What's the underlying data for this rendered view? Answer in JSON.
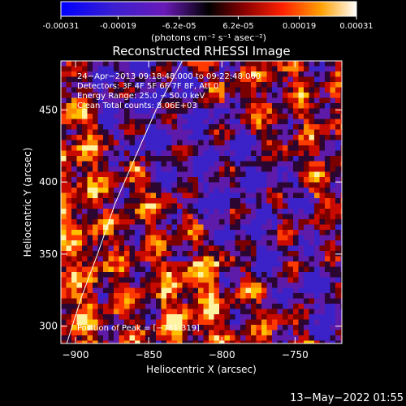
{
  "chart_data": {
    "type": "heatmap",
    "title": "Reconstructed RHESSI Image",
    "colorbar": {
      "ticks": [
        "-0.00031",
        "-0.00019",
        "-6.2e-05",
        "6.2e-05",
        "0.00019",
        "0.00031"
      ],
      "tick_values": [
        -0.00031,
        -0.00019,
        -6.2e-05,
        6.2e-05,
        0.00019,
        0.00031
      ],
      "range": [
        -0.00031,
        0.00031
      ],
      "unit_label": "(photons cm⁻² s⁻¹ asec⁻²)"
    },
    "xlabel": "Heliocentric X (arcsec)",
    "ylabel": "Heliocentric Y (arcsec)",
    "xlim": [
      -910,
      -718
    ],
    "ylim": [
      288,
      484
    ],
    "xticks": [
      {
        "value": -900,
        "label": "−900"
      },
      {
        "value": -850,
        "label": "−850"
      },
      {
        "value": -800,
        "label": "−800"
      },
      {
        "value": -750,
        "label": "−750"
      }
    ],
    "yticks": [
      {
        "value": 300,
        "label": "300"
      },
      {
        "value": 350,
        "label": "350"
      },
      {
        "value": 400,
        "label": "400"
      },
      {
        "value": 450,
        "label": "450"
      }
    ],
    "info_lines": [
      "24−Apr−2013 09:18:48.000 to 09:22:48.000",
      "Detectors: 3F 4F 5F 6F 7F 8F, Att 0",
      "Energy Range: 25.0 − 50.0 keV",
      "Clean     Total counts: 8.06E+03"
    ],
    "peak_label": "Position of Peak = [−781,319]",
    "limb_curve": [
      [
        -906,
        288
      ],
      [
        -896,
        320
      ],
      [
        -885,
        350
      ],
      [
        -873,
        385
      ],
      [
        -858,
        420
      ],
      [
        -845,
        450
      ],
      [
        -827,
        484
      ]
    ],
    "grid": false
  },
  "footer": {
    "timestamp": "13−May−2022 01:55"
  },
  "colors": {
    "background": "#000000",
    "foreground": "#ffffff"
  }
}
